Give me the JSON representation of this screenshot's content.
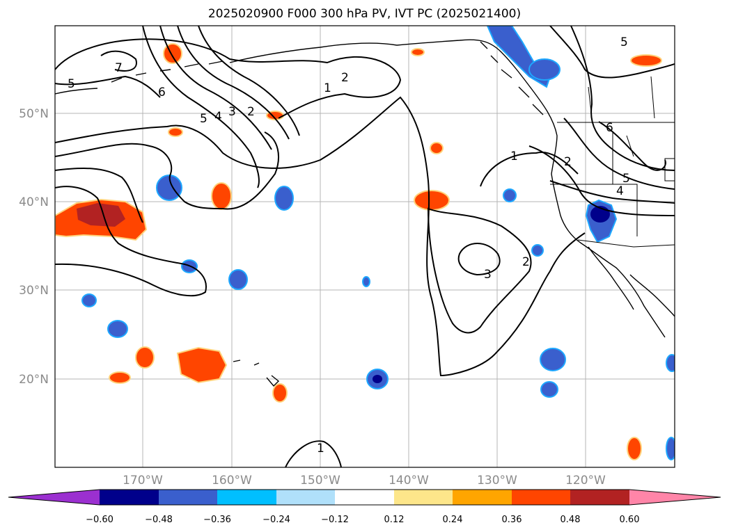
{
  "title": "2025020900 F000 300 hPa PV, IVT PC (2025021400)",
  "map": {
    "projection": "PlateCarree",
    "lon_range": [
      -180,
      -110
    ],
    "lat_range": [
      10,
      60
    ],
    "lat_ticks": [
      {
        "value": 50,
        "label": "50°N"
      },
      {
        "value": 40,
        "label": "40°N"
      },
      {
        "value": 30,
        "label": "30°N"
      },
      {
        "value": 20,
        "label": "20°N"
      }
    ],
    "lon_ticks": [
      {
        "value": -170,
        "label": "170°W"
      },
      {
        "value": -160,
        "label": "160°W"
      },
      {
        "value": -150,
        "label": "150°W"
      },
      {
        "value": -140,
        "label": "140°W"
      },
      {
        "value": -130,
        "label": "130°W"
      },
      {
        "value": -120,
        "label": "120°W"
      }
    ],
    "gridlines": true,
    "contour_labels": [
      "7",
      "5",
      "6",
      "5",
      "4",
      "3",
      "2",
      "2",
      "1",
      "5",
      "6",
      "1",
      "2",
      "5",
      "4",
      "3",
      "2",
      "1"
    ]
  },
  "colorbar": {
    "extend": "both",
    "ticks": [
      "−0.60",
      "−0.48",
      "−0.36",
      "−0.24",
      "−0.12",
      "0.12",
      "0.24",
      "0.36",
      "0.48",
      "0.60"
    ],
    "colors": [
      "#9b30d0",
      "#00008b",
      "#3a5fcd",
      "#00bfff",
      "#b0e0fa",
      "#ffffff",
      "#fde68a",
      "#ffa500",
      "#ff4500",
      "#b22222",
      "#ff85a8"
    ]
  }
}
